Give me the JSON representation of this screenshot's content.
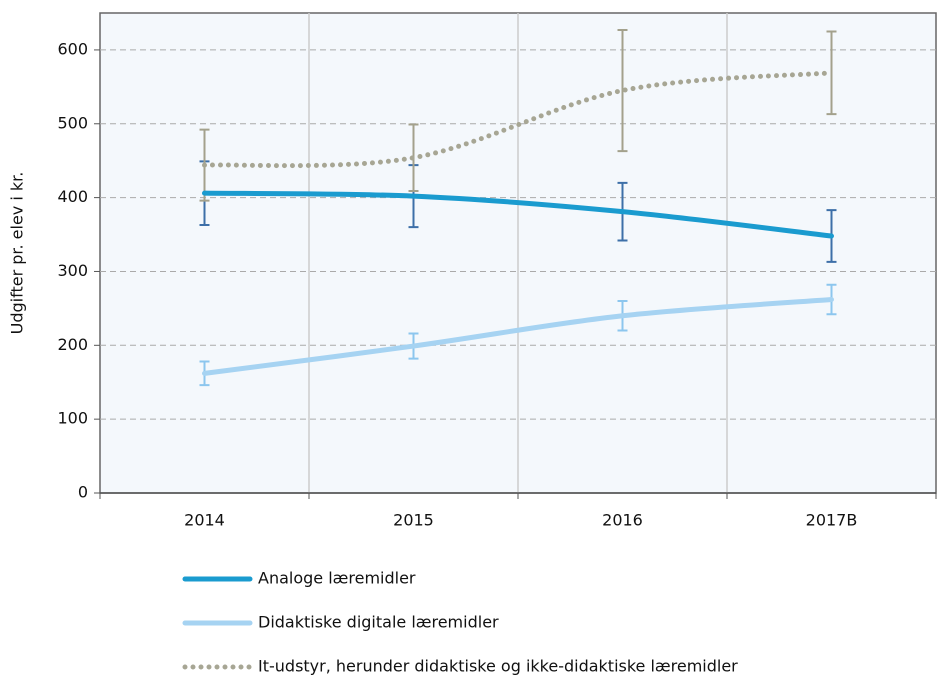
{
  "chart_data": {
    "type": "line",
    "y_label": "Udgifter pr. elev i kr.",
    "categories": [
      "2014",
      "2015",
      "2016",
      "2017B"
    ],
    "series": [
      {
        "name": "Analoge læremidler",
        "color": "#1a9bcf",
        "error_color": "#3d6fa8",
        "style": "solid",
        "values": [
          406,
          402,
          381,
          348
        ],
        "errors": [
          43,
          42,
          39,
          35
        ]
      },
      {
        "name": "Didaktiske digitale læremidler",
        "color": "#a6d3f2",
        "error_color": "#8cc6ee",
        "style": "solid",
        "values": [
          162,
          199,
          240,
          262
        ],
        "errors": [
          16,
          17,
          20,
          20
        ]
      },
      {
        "name": "It-udstyr, herunder didaktiske og ikke-didaktiske læremidler",
        "color": "#a7a694",
        "error_color": "#a3a18c",
        "style": "dotted",
        "values": [
          444,
          454,
          545,
          569
        ],
        "errors": [
          48,
          45,
          82,
          56
        ]
      }
    ],
    "ylim": [
      0,
      650
    ],
    "yticks": [
      0,
      100,
      200,
      300,
      400,
      500,
      600
    ],
    "grid": true
  }
}
